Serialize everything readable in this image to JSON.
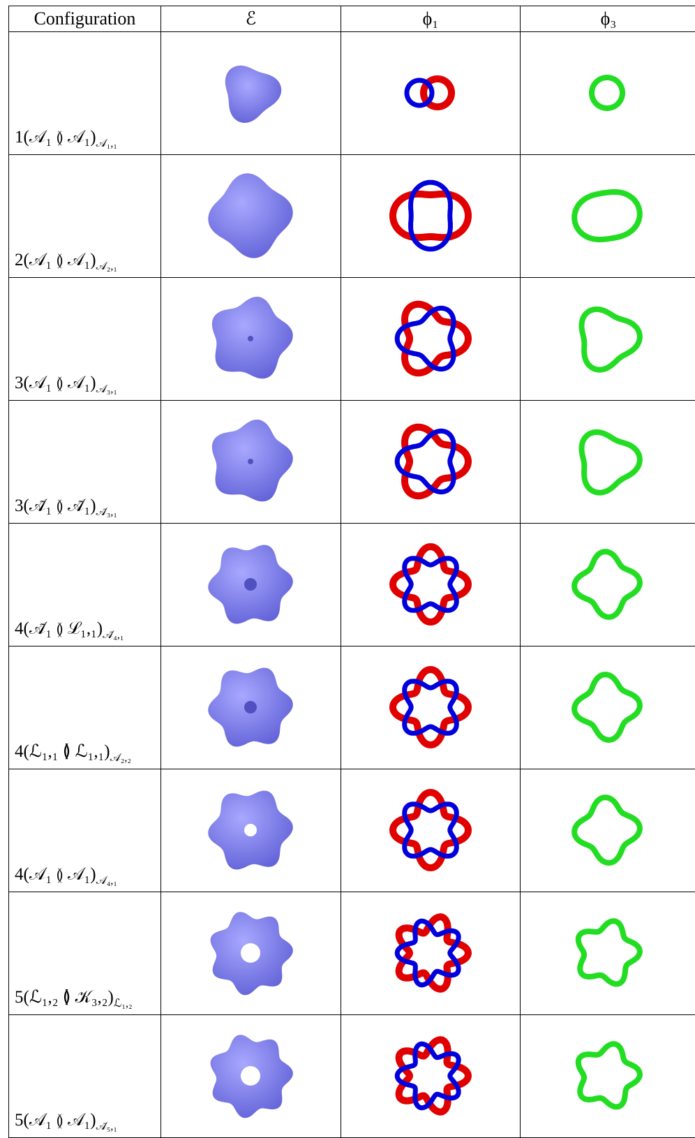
{
  "header": [
    "Configuration",
    "ℰ",
    "ϕ₁",
    "ϕ₃"
  ],
  "rows": [
    {
      "label": "1(𝒜₁ ≬ 𝒜₁)",
      "subscript": "𝒜₁,₁"
    },
    {
      "label": "2(𝒜₁ ≬ 𝒜₁)",
      "subscript": "𝒜₂,₁"
    },
    {
      "label": "3(𝒜₁ ≬ 𝒜₁)",
      "subscript": "𝒜₃,₁"
    },
    {
      "label": "3(𝒜̃₁ ≬ 𝒜̃₁)",
      "subscript": "𝒜̃₃,₁"
    },
    {
      "label": "4(𝒜̃₁ ≬ ℒ₁,₁)",
      "subscript": "𝒜̃₄,₁"
    },
    {
      "label": "4(ℒ₁,₁ ≬ ℒ₁,₁)",
      "subscript": "𝒜₂,₂"
    },
    {
      "label": "4(𝒜₁ ≬ 𝒜₁)",
      "subscript": "𝒜₄,₁"
    },
    {
      "label": "5(ℒ₁,₂ ≬ 𝒦₃,₂)",
      "subscript": "ℒ₁,₂"
    },
    {
      "label": "5(𝒜₁ ≬ 𝒜₁)",
      "subscript": "𝒜̃₅,₁"
    }
  ]
}
